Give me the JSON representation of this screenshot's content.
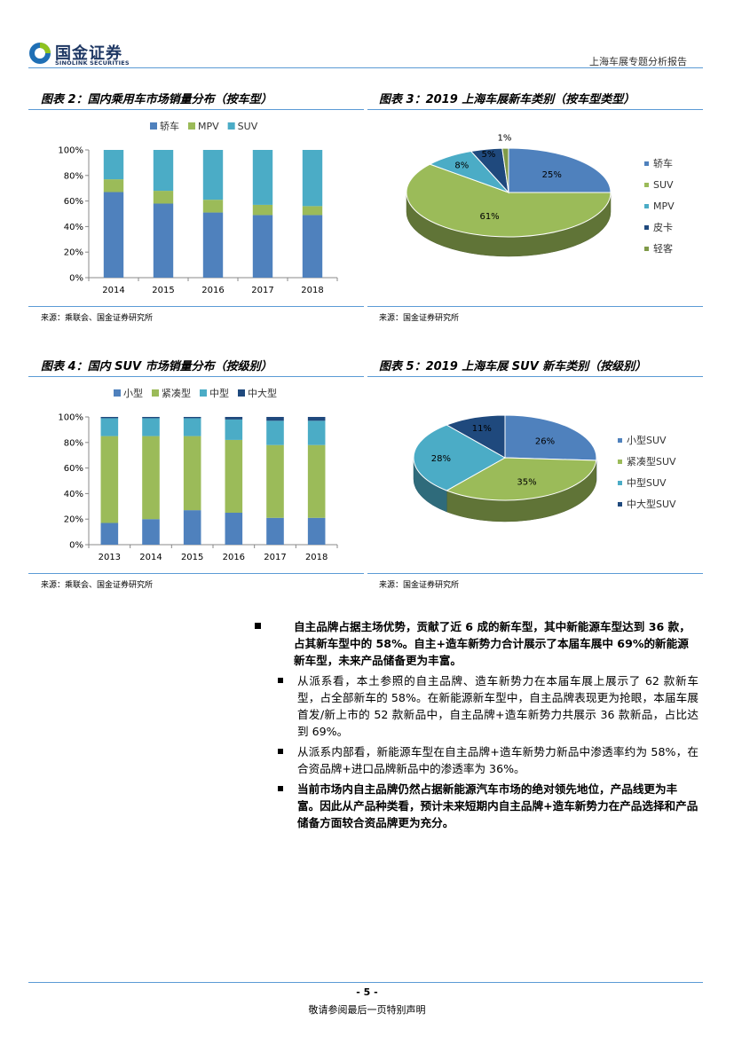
{
  "header": {
    "logo_cn": "国金证券",
    "logo_en": "SINOLINK SECURITIES",
    "report_title": "上海车展专题分析报告",
    "colors": {
      "logo_blue": "#1f6fb5",
      "logo_green": "#8fc31f",
      "rule": "#5b9bd5"
    }
  },
  "figures": {
    "fig2": {
      "title": "图表 2：国内乘用车市场销量分布（按车型）",
      "source": "来源：乘联会、国金证券研究所"
    },
    "fig3": {
      "title": "图表 3：2019 上海车展新车类别（按车型类型）",
      "source": "来源：国金证券研究所"
    },
    "fig4": {
      "title": "图表 4：国内 SUV 市场销量分布（按级别）",
      "source": "来源：乘联会、国金证券研究所"
    },
    "fig5": {
      "title": "图表 5：2019 上海车展 SUV 新车类别（按级别）",
      "source": "来源：国金证券研究所"
    }
  },
  "chart_data": [
    {
      "id": "fig2",
      "type": "bar",
      "stacked": true,
      "categories": [
        "2014",
        "2015",
        "2016",
        "2017",
        "2018"
      ],
      "series": [
        {
          "name": "轿车",
          "color": "#4f81bd",
          "values": [
            67,
            58,
            51,
            49,
            49
          ]
        },
        {
          "name": "MPV",
          "color": "#9bbb59",
          "values": [
            10,
            10,
            10,
            8,
            7
          ]
        },
        {
          "name": "SUV",
          "color": "#4bacc6",
          "values": [
            23,
            32,
            39,
            43,
            44
          ]
        }
      ],
      "ylim": [
        0,
        100
      ],
      "yticks": [
        "0%",
        "20%",
        "40%",
        "60%",
        "80%",
        "100%"
      ],
      "legend": "top",
      "grid": false
    },
    {
      "id": "fig3",
      "type": "pie",
      "labels": [
        "轿车",
        "SUV",
        "MPV",
        "皮卡",
        "轻客"
      ],
      "values": [
        25,
        61,
        8,
        5,
        1
      ],
      "value_labels": [
        "25%",
        "61%",
        "8%",
        "5%",
        "1%"
      ],
      "colors": [
        "#4f81bd",
        "#9bbb59",
        "#4bacc6",
        "#1f497d",
        "#7f9a48"
      ],
      "legend": "right"
    },
    {
      "id": "fig4",
      "type": "bar",
      "stacked": true,
      "categories": [
        "2013",
        "2014",
        "2015",
        "2016",
        "2017",
        "2018"
      ],
      "series": [
        {
          "name": "小型",
          "color": "#4f81bd",
          "values": [
            17,
            20,
            27,
            25,
            21,
            21
          ]
        },
        {
          "name": "紧凑型",
          "color": "#9bbb59",
          "values": [
            68,
            65,
            58,
            57,
            57,
            57
          ]
        },
        {
          "name": "中型",
          "color": "#4bacc6",
          "values": [
            14,
            14,
            14,
            16,
            19,
            19
          ]
        },
        {
          "name": "中大型",
          "color": "#1f497d",
          "values": [
            1,
            1,
            1,
            2,
            3,
            3
          ]
        }
      ],
      "ylim": [
        0,
        100
      ],
      "yticks": [
        "0%",
        "20%",
        "40%",
        "60%",
        "80%",
        "100%"
      ],
      "legend": "top",
      "grid": false
    },
    {
      "id": "fig5",
      "type": "pie",
      "labels": [
        "小型SUV",
        "紧凑型SUV",
        "中型SUV",
        "中大型SUV"
      ],
      "values": [
        26,
        35,
        28,
        11
      ],
      "value_labels": [
        "26%",
        "35%",
        "28%",
        "11%"
      ],
      "colors": [
        "#4f81bd",
        "#9bbb59",
        "#4bacc6",
        "#1f497d"
      ],
      "legend": "right"
    }
  ],
  "text": {
    "bullet1": "自主品牌占据主场优势，贡献了近 6 成的新车型，其中新能源车型达到 36 款，占其新车型中的 58%。自主+造车新势力合计展示了本届车展中 69%的新能源新车型，未来产品储备更为丰富。",
    "sub1": "从派系看，本土参照的自主品牌、造车新势力在本届车展上展示了 62 款新车型，占全部新车的 58%。在新能源新车型中，自主品牌表现更为抢眼，本届车展首发/新上市的 52 款新品中，自主品牌+造车新势力共展示 36 款新品，占比达到 69%。",
    "sub2": "从派系内部看，新能源车型在自主品牌+造车新势力新品中渗透率约为 58%，在合资品牌+进口品牌新品中的渗透率为 36%。",
    "sub3": "当前市场内自主品牌仍然占据新能源汽车市场的绝对领先地位，产品线更为丰富。因此从产品种类看，预计未来短期内自主品牌+造车新势力在产品选择和产品储备方面较合资品牌更为充分。"
  },
  "footer": {
    "page": "- 5 -",
    "note": "敬请参阅最后一页特别声明"
  }
}
